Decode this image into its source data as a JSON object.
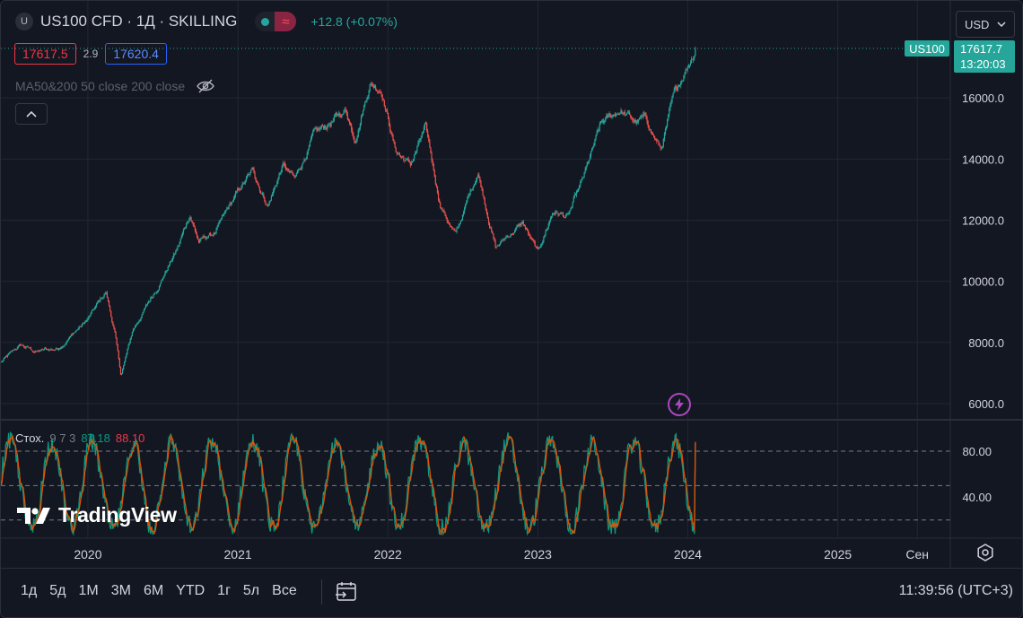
{
  "header": {
    "symbol_badge": "U",
    "title": "US100 CFD · 1Д · SKILLING",
    "market_open_icon": "green-dot-icon",
    "chart_type_icon": "wave-icon",
    "change": "+12.8 (+0.07%)"
  },
  "quotes": {
    "bid": "17617.5",
    "spread": "2.9",
    "ask": "17620.4"
  },
  "indicator": {
    "ma_label": "MA50&200 50 close 200 close",
    "visibility_icon": "eye-crossed-icon"
  },
  "currency_button": {
    "label": "USD",
    "icon": "chevron-down-icon"
  },
  "price_tag": {
    "symbol": "US100",
    "price": "17617.7",
    "countdown": "13:20:03"
  },
  "stochastic": {
    "name": "Стох.",
    "params": "9 7 3",
    "k_value": "87.18",
    "d_value": "88.10"
  },
  "logo": {
    "text": "TradingView"
  },
  "bottom": {
    "periods": [
      "1д",
      "5д",
      "1М",
      "3М",
      "6М",
      "YTD",
      "1г",
      "5л",
      "Все"
    ],
    "range_icon": "calendar-range-icon",
    "clock": "11:39:56 (UTC+3)",
    "settings_icon": "gear-icon"
  },
  "colors": {
    "up": "#26a69a",
    "down": "#ef5350",
    "k_line": "#089981",
    "d_line": "#f23645",
    "background": "#131722",
    "grid": "#232733"
  },
  "chart_data": [
    {
      "type": "candlestick",
      "series": "US100 CFD daily",
      "y_axis_ticks": [
        "16000.0",
        "14000.0",
        "12000.0",
        "10000.0",
        "8000.0",
        "6000.0"
      ],
      "ylim": [
        5500,
        18000
      ],
      "x_axis_ticks": [
        "2020",
        "2021",
        "2022",
        "2023",
        "2024",
        "2025",
        "Сен"
      ],
      "xlim": [
        2019.42,
        2025.75
      ],
      "last_price": 17617.7,
      "approx_close_path": [
        {
          "t": 2019.42,
          "v": 7350
        },
        {
          "t": 2019.55,
          "v": 7900
        },
        {
          "t": 2019.65,
          "v": 7700
        },
        {
          "t": 2019.8,
          "v": 7800
        },
        {
          "t": 2019.9,
          "v": 8300
        },
        {
          "t": 2020.0,
          "v": 8750
        },
        {
          "t": 2020.12,
          "v": 9650
        },
        {
          "t": 2020.18,
          "v": 8300
        },
        {
          "t": 2020.22,
          "v": 6900
        },
        {
          "t": 2020.3,
          "v": 8400
        },
        {
          "t": 2020.45,
          "v": 9700
        },
        {
          "t": 2020.6,
          "v": 11100
        },
        {
          "t": 2020.68,
          "v": 12200
        },
        {
          "t": 2020.74,
          "v": 11300
        },
        {
          "t": 2020.85,
          "v": 11600
        },
        {
          "t": 2021.0,
          "v": 12900
        },
        {
          "t": 2021.1,
          "v": 13600
        },
        {
          "t": 2021.2,
          "v": 12500
        },
        {
          "t": 2021.3,
          "v": 13800
        },
        {
          "t": 2021.38,
          "v": 13300
        },
        {
          "t": 2021.5,
          "v": 14700
        },
        {
          "t": 2021.6,
          "v": 15100
        },
        {
          "t": 2021.72,
          "v": 15600
        },
        {
          "t": 2021.78,
          "v": 14700
        },
        {
          "t": 2021.88,
          "v": 16500
        },
        {
          "t": 2021.96,
          "v": 16300
        },
        {
          "t": 2022.05,
          "v": 14300
        },
        {
          "t": 2022.15,
          "v": 13800
        },
        {
          "t": 2022.25,
          "v": 15000
        },
        {
          "t": 2022.35,
          "v": 12500
        },
        {
          "t": 2022.45,
          "v": 11500
        },
        {
          "t": 2022.6,
          "v": 13600
        },
        {
          "t": 2022.72,
          "v": 11100
        },
        {
          "t": 2022.8,
          "v": 11500
        },
        {
          "t": 2022.9,
          "v": 11900
        },
        {
          "t": 2023.0,
          "v": 10900
        },
        {
          "t": 2023.1,
          "v": 12300
        },
        {
          "t": 2023.2,
          "v": 12100
        },
        {
          "t": 2023.3,
          "v": 13300
        },
        {
          "t": 2023.42,
          "v": 15100
        },
        {
          "t": 2023.55,
          "v": 15600
        },
        {
          "t": 2023.65,
          "v": 15200
        },
        {
          "t": 2023.72,
          "v": 15300
        },
        {
          "t": 2023.82,
          "v": 14300
        },
        {
          "t": 2023.9,
          "v": 15900
        },
        {
          "t": 2023.98,
          "v": 16900
        },
        {
          "t": 2024.05,
          "v": 17617.7
        }
      ]
    },
    {
      "type": "line",
      "series": [
        "%K",
        "%D"
      ],
      "y_axis_ticks": [
        "80.00",
        "40.00"
      ],
      "ylim": [
        5,
        105
      ],
      "bands": [
        80,
        50,
        20
      ],
      "k_last": 87.18,
      "d_last": 88.1
    }
  ]
}
